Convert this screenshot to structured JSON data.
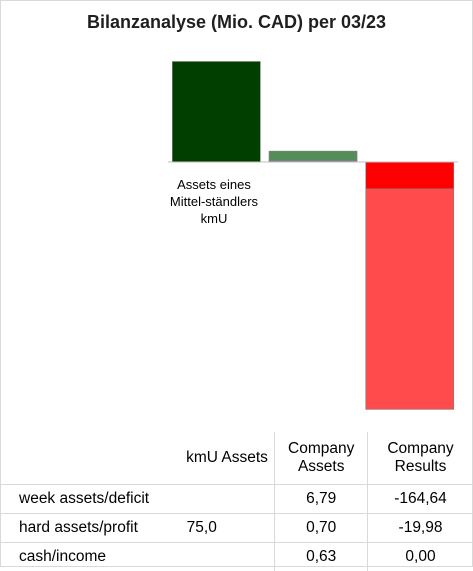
{
  "title": "Bilanzanalyse  (Mio. CAD) per 03/23",
  "chart_data": {
    "type": "bar",
    "categories": [
      "kmU Assets",
      "Company Assets",
      "Company Results"
    ],
    "series": [
      {
        "name": "hard assets/profit",
        "values": [
          75.0,
          0.7,
          -19.98
        ],
        "colors": [
          "#003f00",
          "#538d5a",
          "#ff0000"
        ]
      },
      {
        "name": "cash/income",
        "values": [
          0,
          0.63,
          0.0
        ],
        "colors": [
          "#003f00",
          "#538d5a",
          "#ff0000"
        ]
      },
      {
        "name": "week assets/deficit",
        "values": [
          0,
          6.79,
          -164.64
        ],
        "colors": [
          "#003f00",
          "#538d5a",
          "#ff4b4b"
        ]
      }
    ],
    "bar_annotation": "Assets eines Mittel-ständlers kmU",
    "stacked": true
  },
  "table": {
    "headers": [
      "",
      "kmU Assets",
      "Company Assets",
      "Company Results"
    ],
    "rows": [
      [
        "week assets/deficit",
        "",
        "6,79",
        "-164,64"
      ],
      [
        "hard assets/profit",
        "75,0",
        "0,70",
        "-19,98"
      ],
      [
        "cash/income",
        "",
        "0,63",
        "0,00"
      ]
    ]
  }
}
